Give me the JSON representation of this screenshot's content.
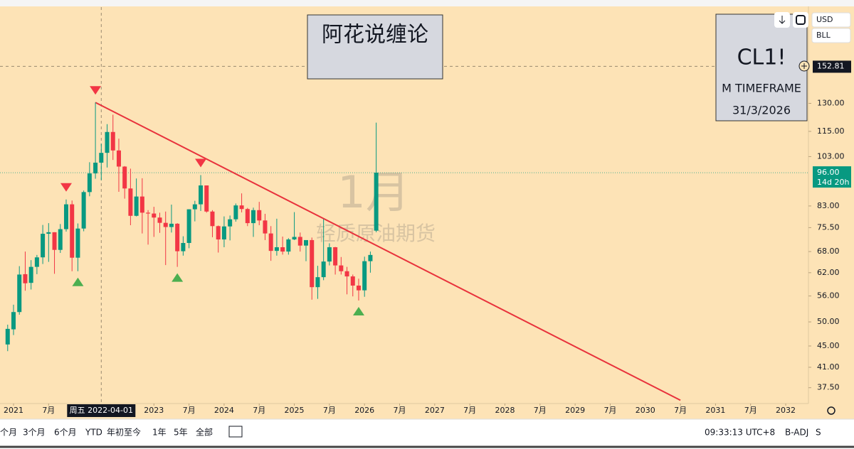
{
  "chart_data": {
    "type": "candlestick",
    "log_scale": true,
    "title": "阿花说缠论",
    "info_box": {
      "symbol": "CL1!",
      "timeframe": "M TIMEFRAME",
      "date": "31/3/2026"
    },
    "watermark": {
      "interval": "1月",
      "name": "轻质原油期货"
    },
    "x": [
      "2020-12",
      "2021-01",
      "2021-02",
      "2021-03",
      "2021-04",
      "2021-05",
      "2021-06",
      "2021-07",
      "2021-08",
      "2021-09",
      "2021-10",
      "2021-11",
      "2021-12",
      "2022-01",
      "2022-02",
      "2022-03",
      "2022-04",
      "2022-05",
      "2022-06",
      "2022-07",
      "2022-08",
      "2022-09",
      "2022-10",
      "2022-11",
      "2022-12",
      "2023-01",
      "2023-02",
      "2023-03",
      "2023-04",
      "2023-05",
      "2023-06",
      "2023-07",
      "2023-08",
      "2023-09",
      "2023-10",
      "2023-11",
      "2023-12",
      "2024-01",
      "2024-02",
      "2024-03",
      "2024-04",
      "2024-05",
      "2024-06",
      "2024-07",
      "2024-08",
      "2024-09",
      "2024-10",
      "2024-11",
      "2024-12",
      "2025-01",
      "2025-02",
      "2025-03",
      "2025-04",
      "2025-05",
      "2025-06",
      "2025-07",
      "2025-08",
      "2025-09",
      "2025-10",
      "2025-11",
      "2025-12",
      "2026-01",
      "2026-02",
      "2026-03"
    ],
    "open": [
      45.3,
      48.4,
      52.2,
      61.6,
      59.3,
      63.6,
      66.3,
      73.5,
      74.0,
      68.5,
      75.0,
      83.6,
      66.2,
      75.2,
      88.2,
      95.7,
      100.3,
      104.7,
      114.7,
      105.8,
      98.6,
      89.6,
      79.5,
      86.5,
      80.6,
      80.3,
      78.9,
      77.1,
      75.7,
      76.8,
      68.1,
      70.6,
      81.8,
      83.6,
      90.8,
      81.0,
      76.0,
      71.7,
      75.9,
      78.3,
      83.2,
      81.9,
      77.0,
      81.5,
      77.9,
      73.6,
      68.2,
      69.3,
      68.0,
      71.7,
      72.5,
      69.8,
      71.5,
      58.2,
      60.8,
      65.1,
      69.3,
      64.0,
      62.4,
      61.0,
      58.6,
      57.4,
      65.2,
      74.5
    ],
    "high": [
      49.4,
      53.9,
      63.8,
      68.0,
      65.5,
      67.0,
      76.4,
      77.0,
      74.0,
      76.7,
      85.4,
      85.0,
      76.9,
      88.8,
      100.5,
      130.5,
      109.0,
      118.7,
      123.7,
      111.4,
      98.8,
      97.7,
      93.6,
      93.7,
      81.5,
      82.7,
      80.6,
      81.0,
      83.5,
      77.0,
      72.7,
      81.8,
      84.9,
      95.0,
      90.8,
      81.5,
      76.2,
      79.3,
      79.6,
      83.9,
      87.7,
      82.3,
      82.4,
      84.5,
      80.2,
      76.0,
      78.5,
      72.6,
      72.1,
      80.8,
      73.9,
      71.3,
      72.3,
      63.9,
      78.4,
      70.5,
      69.4,
      66.4,
      63.6,
      61.5,
      60.4,
      66.5,
      68.0,
      119.5
    ],
    "low": [
      44.0,
      47.2,
      51.6,
      57.3,
      57.6,
      61.6,
      64.4,
      65.0,
      61.7,
      67.6,
      74.2,
      62.4,
      62.4,
      74.3,
      86.6,
      93.5,
      92.9,
      98.2,
      101.5,
      88.3,
      85.7,
      76.3,
      79.3,
      73.6,
      70.1,
      72.5,
      73.8,
      64.1,
      73.9,
      63.6,
      66.8,
      69.0,
      77.6,
      81.2,
      80.6,
      72.4,
      67.7,
      69.3,
      71.4,
      77.5,
      80.7,
      76.0,
      72.5,
      76.3,
      71.5,
      65.3,
      66.8,
      67.1,
      67.1,
      71.5,
      68.0,
      65.2,
      55.1,
      55.3,
      60.0,
      64.0,
      61.5,
      61.5,
      56.4,
      55.9,
      54.9,
      55.8,
      62.0,
      74.0
    ],
    "close": [
      48.5,
      52.2,
      61.5,
      59.2,
      63.6,
      66.3,
      73.5,
      74.0,
      68.5,
      75.0,
      83.6,
      66.2,
      75.2,
      88.2,
      95.7,
      100.3,
      104.7,
      114.7,
      105.8,
      98.6,
      89.6,
      79.5,
      86.5,
      80.6,
      80.3,
      78.9,
      77.1,
      75.7,
      76.8,
      68.1,
      70.6,
      81.8,
      83.6,
      90.8,
      81.0,
      76.0,
      71.7,
      75.9,
      78.3,
      83.2,
      81.9,
      77.0,
      81.5,
      77.9,
      73.6,
      68.2,
      69.3,
      68.0,
      71.7,
      72.5,
      69.8,
      71.5,
      58.2,
      60.8,
      65.1,
      69.3,
      64.0,
      62.4,
      61.0,
      58.6,
      57.4,
      65.2,
      67.0,
      96.0
    ],
    "up_color": "#089981",
    "down_color": "#f23645",
    "ylim": [
      35.1,
      198
    ],
    "yticks": [
      {
        "value": 37.5,
        "label": "37.50"
      },
      {
        "value": 41,
        "label": "41.00"
      },
      {
        "value": 45,
        "label": "45.00"
      },
      {
        "value": 50,
        "label": "50.00"
      },
      {
        "value": 56,
        "label": "56.00"
      },
      {
        "value": 62,
        "label": "62.00"
      },
      {
        "value": 68,
        "label": "68.00"
      },
      {
        "value": 75.5,
        "label": "75.50"
      },
      {
        "value": 83,
        "label": "83.00"
      },
      {
        "value": 103,
        "label": "103.00"
      },
      {
        "value": 115,
        "label": "115.00"
      },
      {
        "value": 130,
        "label": "130.00"
      }
    ],
    "xticks": [
      {
        "value": "2021-01",
        "label": "2021"
      },
      {
        "value": "2021-07",
        "label": "7月"
      },
      {
        "value": "2023-01",
        "label": "2023"
      },
      {
        "value": "2023-07",
        "label": "7月"
      },
      {
        "value": "2024-01",
        "label": "2024"
      },
      {
        "value": "2024-07",
        "label": "7月"
      },
      {
        "value": "2025-01",
        "label": "2025"
      },
      {
        "value": "2025-07",
        "label": "7月"
      },
      {
        "value": "2026-01",
        "label": "2026"
      },
      {
        "value": "2026-07",
        "label": "7月"
      },
      {
        "value": "2027-01",
        "label": "2027"
      },
      {
        "value": "2027-07",
        "label": "7月"
      },
      {
        "value": "2028-01",
        "label": "2028"
      },
      {
        "value": "2028-07",
        "label": "7月"
      },
      {
        "value": "2029-01",
        "label": "2029"
      },
      {
        "value": "2029-07",
        "label": "7月"
      },
      {
        "value": "2030-01",
        "label": "2030"
      },
      {
        "value": "2030-07",
        "label": "7月"
      },
      {
        "value": "2031-01",
        "label": "2031"
      },
      {
        "value": "2031-07",
        "label": "7月"
      },
      {
        "value": "2032-01",
        "label": "2032"
      }
    ],
    "last_price": {
      "value": 96,
      "label": "96.00",
      "countdown": "14d 20h"
    },
    "crosshair": {
      "x": "2022-04",
      "x_label": "周五 2022-04-01",
      "y": 152.81,
      "y_label": "152.81"
    },
    "trendline": {
      "color": "#e8323c",
      "start": {
        "x": "2022-03",
        "y": 130.5
      },
      "end": {
        "x": "2030-07",
        "y": 35.5
      }
    },
    "tops": [
      "2021-10",
      "2022-03",
      "2023-09"
    ],
    "bottoms": [
      "2021-12",
      "2023-05",
      "2025-12"
    ],
    "top_color": "#f23645",
    "bottom_color": "#4caf50"
  },
  "toolbar": {
    "currency": "USD",
    "unit": "BLL",
    "ranges": [
      "个月",
      "3个月",
      "6个月",
      "YTD",
      "年初至今",
      "1年",
      "5年",
      "全部"
    ],
    "time": "09:33:13 UTC+8",
    "adjust": "B-ADJ",
    "extra": "S"
  }
}
